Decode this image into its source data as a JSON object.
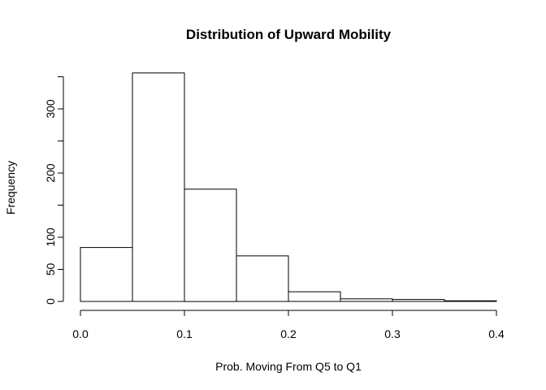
{
  "chart_data": {
    "type": "bar",
    "title": "Distribution of Upward Mobility",
    "xlabel": "Prob. Moving From Q5 to Q1",
    "ylabel": "Frequency",
    "bins": [
      {
        "start": 0.0,
        "end": 0.05,
        "count": 84
      },
      {
        "start": 0.05,
        "end": 0.1,
        "count": 356
      },
      {
        "start": 0.1,
        "end": 0.15,
        "count": 175
      },
      {
        "start": 0.15,
        "end": 0.2,
        "count": 71
      },
      {
        "start": 0.2,
        "end": 0.25,
        "count": 15
      },
      {
        "start": 0.25,
        "end": 0.3,
        "count": 4
      },
      {
        "start": 0.3,
        "end": 0.35,
        "count": 3
      },
      {
        "start": 0.35,
        "end": 0.4,
        "count": 1
      }
    ],
    "xlim": [
      0,
      0.4
    ],
    "ylim": [
      0,
      350
    ],
    "x_ticks": [
      {
        "value": 0.0,
        "label": "0.0"
      },
      {
        "value": 0.1,
        "label": "0.1"
      },
      {
        "value": 0.2,
        "label": "0.2"
      },
      {
        "value": 0.3,
        "label": "0.3"
      },
      {
        "value": 0.4,
        "label": "0.4"
      }
    ],
    "y_ticks": [
      {
        "value": 0,
        "label": "0"
      },
      {
        "value": 50,
        "label": "50"
      },
      {
        "value": 100,
        "label": "100"
      },
      {
        "value": 150,
        "label": ""
      },
      {
        "value": 200,
        "label": "200"
      },
      {
        "value": 250,
        "label": ""
      },
      {
        "value": 300,
        "label": "300"
      },
      {
        "value": 350,
        "label": ""
      }
    ],
    "grid": false,
    "legend": "none",
    "bar_fill": "#ffffff",
    "bar_stroke": "#000000"
  }
}
